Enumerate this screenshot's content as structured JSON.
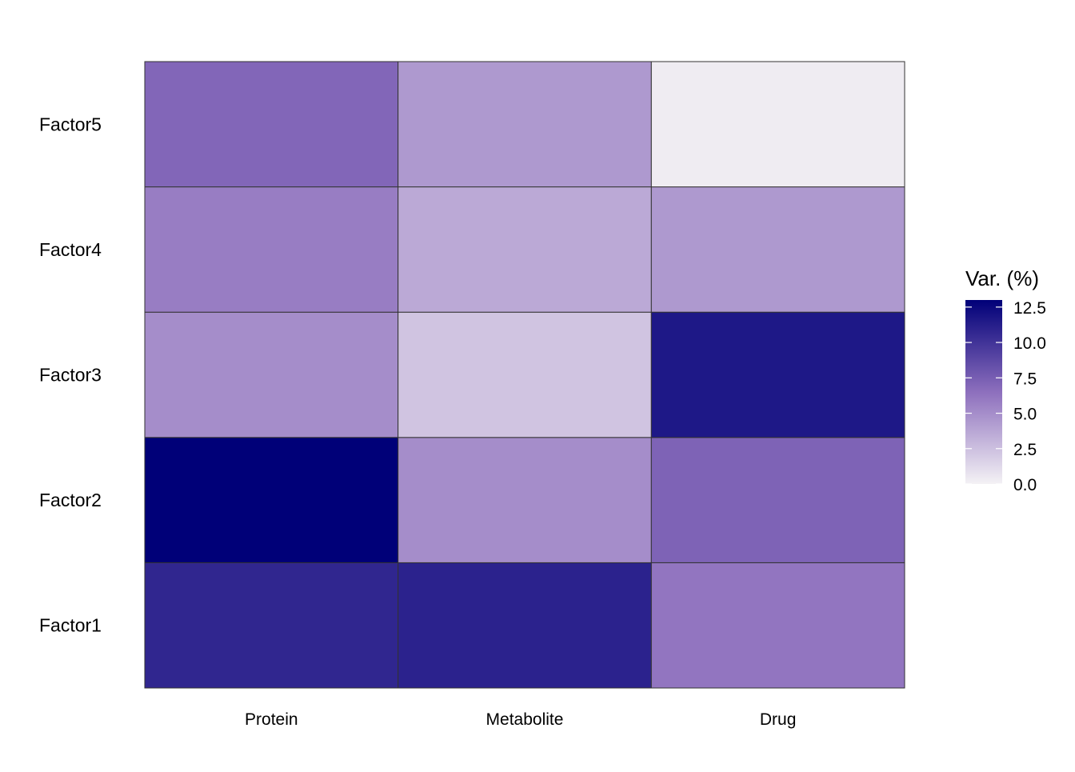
{
  "chart_data": {
    "type": "heatmap",
    "title": "",
    "xlabel": "",
    "ylabel": "",
    "x_categories": [
      "Protein",
      "Metabolite",
      "Drug"
    ],
    "y_categories": [
      "Factor1",
      "Factor2",
      "Factor3",
      "Factor4",
      "Factor5"
    ],
    "values": [
      [
        10.8,
        11.0,
        6.2
      ],
      [
        13.0,
        5.0,
        7.2
      ],
      [
        5.0,
        2.3,
        11.6
      ],
      [
        5.8,
        3.6,
        4.4
      ],
      [
        7.0,
        4.4,
        0.3
      ]
    ],
    "legend": {
      "title": "Var. (%)",
      "min": 0.0,
      "max": 13.0,
      "ticks": [
        "0.0",
        "2.5",
        "5.0",
        "7.5",
        "10.0",
        "12.5"
      ],
      "tick_values": [
        0.0,
        2.5,
        5.0,
        7.5,
        10.0,
        12.5
      ],
      "position": "right"
    },
    "colors": {
      "low": "#f4f2f5",
      "mid": "#8d6fbd",
      "high": "#000078",
      "cell_border": "#333333"
    },
    "grid": false
  }
}
